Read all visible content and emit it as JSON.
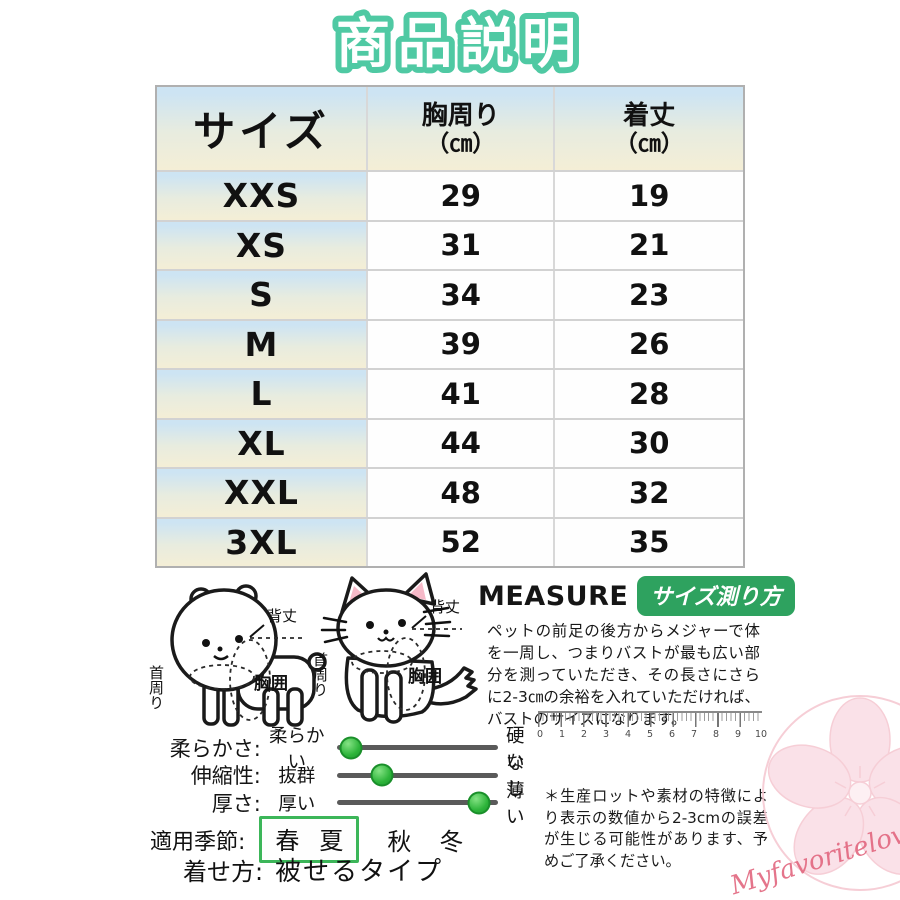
{
  "title": "商品説明",
  "size_table": {
    "header": {
      "size": "サイズ",
      "chest": "胸周り",
      "chest_unit": "（㎝）",
      "length": "着丈",
      "length_unit": "（㎝）"
    },
    "rows": [
      {
        "size": "XXS",
        "chest": "29",
        "length": "19"
      },
      {
        "size": "XS",
        "chest": "31",
        "length": "21"
      },
      {
        "size": "S",
        "chest": "34",
        "length": "23"
      },
      {
        "size": "M",
        "chest": "39",
        "length": "26"
      },
      {
        "size": "L",
        "chest": "41",
        "length": "28"
      },
      {
        "size": "XL",
        "chest": "44",
        "length": "30"
      },
      {
        "size": "XXL",
        "chest": "48",
        "length": "32"
      },
      {
        "size": "3XL",
        "chest": "52",
        "length": "35"
      }
    ]
  },
  "measure": {
    "heading_en": "MEASURE",
    "heading_badge": "サイズ測り方",
    "description": "ペットの前足の後方からメジャーで体を一周し、つまりバストが最も広い部分を測っていただき、その長さにさらに2-3㎝の余裕を入れていただければ、バストのサイズになります。",
    "labels": {
      "back_length": "背丈",
      "neck_girth": "首周り",
      "chest_girth": "胸囲"
    }
  },
  "ruler": {
    "numbers": [
      "0",
      "1",
      "2",
      "3",
      "4",
      "5",
      "6",
      "7",
      "8",
      "9",
      "10"
    ]
  },
  "attributes": [
    {
      "label": "柔らかさ:",
      "left": "柔らかい",
      "right": "硬い",
      "percent": 9
    },
    {
      "label": "伸縮性:",
      "left": "抜群",
      "right": "なし",
      "percent": 28
    },
    {
      "label": "厚さ:",
      "left": "厚い",
      "right": "薄い",
      "percent": 88
    }
  ],
  "season": {
    "label": "適用季節:",
    "items": [
      "春",
      "夏",
      "秋",
      "冬"
    ],
    "highlighted": "春 夏"
  },
  "wearing": {
    "label": "着せ方:",
    "value": "被せるタイプ"
  },
  "note": "＊生産ロットや素材の特徴により表示の数値から2-3cmの誤差が生じる可能性があります、予めご了承ください。",
  "watermark": "Myfavoritelove",
  "colors": {
    "title_outline": "#4fc9a3",
    "badge_green": "#2ea25f",
    "slider_knob_green": "#2db43a",
    "season_box_border": "#3cb659",
    "table_gradient_top": "#cde4f3",
    "table_gradient_bottom": "#f4eed6",
    "watermark_pink": "#e2677f"
  }
}
